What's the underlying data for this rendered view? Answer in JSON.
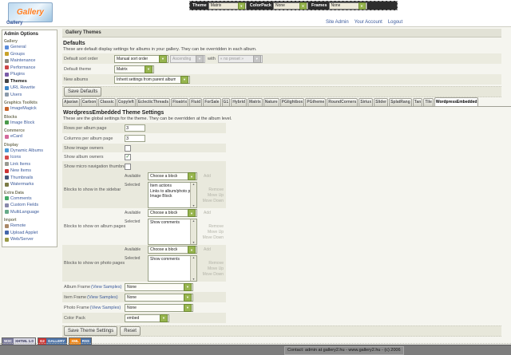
{
  "colors": {
    "accent_green": "#97b54e",
    "link_blue": "#3b5a9b",
    "row_gray": "#e9e9dd"
  },
  "topbar": {
    "theme_label": "Theme",
    "theme_value": "Matrix",
    "colorpack_label": "ColorPack",
    "colorpack_value": "None",
    "frames_label": "Frames",
    "frames_value": "None"
  },
  "header": {
    "logo_text": "Gallery",
    "breadcrumb": "Gallery",
    "links": [
      "Site Admin",
      "Your Account",
      "Logout"
    ]
  },
  "sidebar": {
    "title": "Admin Options",
    "sections": [
      {
        "title": "Gallery",
        "items": [
          {
            "label": "General",
            "icon": "general-icon"
          },
          {
            "label": "Groups",
            "icon": "groups-icon"
          },
          {
            "label": "Maintenance",
            "icon": "maintenance-icon"
          },
          {
            "label": "Performance",
            "icon": "performance-icon"
          },
          {
            "label": "Plugins",
            "icon": "plugins-icon"
          },
          {
            "label": "Themes",
            "icon": "themes-icon",
            "current": true
          },
          {
            "label": "URL Rewrite",
            "icon": "url-rewrite-icon"
          },
          {
            "label": "Users",
            "icon": "users-icon"
          }
        ]
      },
      {
        "title": "Graphics Toolkits",
        "items": [
          {
            "label": "ImageMagick",
            "icon": "imagemagick-icon"
          }
        ]
      },
      {
        "title": "Blocks",
        "items": [
          {
            "label": "Image Block",
            "icon": "image-block-icon"
          }
        ]
      },
      {
        "title": "Commerce",
        "items": [
          {
            "label": "eCard",
            "icon": "ecard-icon"
          }
        ]
      },
      {
        "title": "Display",
        "items": [
          {
            "label": "Dynamic Albums",
            "icon": "dynamic-albums-icon"
          },
          {
            "label": "Icons",
            "icon": "icons-icon"
          },
          {
            "label": "Link Items",
            "icon": "link-items-icon"
          },
          {
            "label": "New Items",
            "icon": "new-items-icon"
          },
          {
            "label": "Thumbnails",
            "icon": "thumbnails-icon"
          },
          {
            "label": "Watermarks",
            "icon": "watermarks-icon"
          }
        ]
      },
      {
        "title": "Extra Data",
        "items": [
          {
            "label": "Comments",
            "icon": "comments-icon"
          },
          {
            "label": "Custom Fields",
            "icon": "custom-fields-icon"
          },
          {
            "label": "MultiLanguage",
            "icon": "multilanguage-icon"
          }
        ]
      },
      {
        "title": "Import",
        "items": [
          {
            "label": "Remote",
            "icon": "remote-icon"
          },
          {
            "label": "Upload Applet",
            "icon": "upload-applet-icon"
          },
          {
            "label": "Web/Server",
            "icon": "web-server-icon"
          }
        ]
      }
    ]
  },
  "main": {
    "page_header": "Gallery Themes",
    "defaults": {
      "heading": "Defaults",
      "description": "These are default display settings for albums in your gallery. They can be overridden in each album.",
      "sort_order_label": "Default sort order",
      "sort_order_value": "Manual sort order",
      "direction_value": "Ascending",
      "with_label": "with",
      "preset_value": "« no preset »",
      "theme_label": "Default theme",
      "theme_value": "Matrix",
      "new_albums_label": "New albums",
      "new_albums_value": "Inherit settings from parent album",
      "save_button": "Save Defaults"
    },
    "tabs": [
      {
        "label": "Ajaxian"
      },
      {
        "label": "Carbon"
      },
      {
        "label": "Classic"
      },
      {
        "label": "Copyleft"
      },
      {
        "label": "EclecticThreads"
      },
      {
        "label": "Floatrix"
      },
      {
        "label": "Fluid"
      },
      {
        "label": "ForSale"
      },
      {
        "label": "G1"
      },
      {
        "label": "Hybrid"
      },
      {
        "label": "Matrix"
      },
      {
        "label": "Nature"
      },
      {
        "label": "PGlightbox"
      },
      {
        "label": "PGtheme"
      },
      {
        "label": "RoundCorners"
      },
      {
        "label": "Siriux"
      },
      {
        "label": "Slider"
      },
      {
        "label": "SplatRang"
      },
      {
        "label": "Tan"
      },
      {
        "label": "Tile"
      },
      {
        "label": "WordpressEmbedded",
        "active": true
      }
    ],
    "theme_settings": {
      "heading": "WordpressEmbedded Theme Settings",
      "description": "These are the global settings for the theme. They can be overridden at the album level.",
      "rows_per_album": {
        "label": "Rows per album page",
        "value": "3"
      },
      "columns_per_album": {
        "label": "Columns per album page",
        "value": "3"
      },
      "show_image_owners": {
        "label": "Show image owners",
        "checked": false
      },
      "show_album_owners": {
        "label": "Show album owners",
        "checked": true
      },
      "show_micro_nav": {
        "label": "Show micro navigation thumbnails",
        "checked": false
      },
      "block_labels": {
        "available": "Available",
        "selected": "Selected",
        "dropdown": "Choose a block",
        "add": "Add",
        "remove": "Remove",
        "move_up": "Move Up",
        "move_down": "Move Down"
      },
      "blocks_sidebar": {
        "label": "Blocks to show in the sidebar",
        "selected_blocks": [
          "Item actions",
          "Links to album/photo peers",
          "Image Block"
        ]
      },
      "blocks_album_pages": {
        "label": "Blocks to show on album pages",
        "selected_blocks": [
          "Show comments"
        ]
      },
      "blocks_photo_pages": {
        "label": "Blocks to show on photo pages",
        "selected_blocks": [
          "Show comments"
        ]
      },
      "album_frame": {
        "label": "Album Frame",
        "samples_link": "(View Samples)",
        "value": "None"
      },
      "item_frame": {
        "label": "Item Frame",
        "samples_link": "(View Samples)",
        "value": "None"
      },
      "photo_frame": {
        "label": "Photo Frame",
        "samples_link": "(View Samples)",
        "value": "None"
      },
      "color_pack": {
        "label": "Color Pack",
        "value": "embed"
      },
      "save_button": "Save Theme Settings",
      "reset_button": "Reset"
    }
  },
  "footer": {
    "badges": [
      {
        "left": "W3C",
        "right": "XHTML 1.0",
        "left_color": "#7a7a9c",
        "right_color": "#d9d9e6",
        "right_text": "#333355"
      },
      {
        "left": "G2",
        "right": "GALLERY",
        "left_color": "#cc3333",
        "right_color": "#4a72a8",
        "right_text": "#ffffff"
      },
      {
        "left": "XML",
        "right": "RSS",
        "left_color": "#ef8413",
        "right_color": "#4a72a8",
        "right_text": "#ffffff"
      }
    ],
    "contact_text": "Contact: admin at gallery2.hu - www.gallery2.hu - (c) 2006"
  }
}
